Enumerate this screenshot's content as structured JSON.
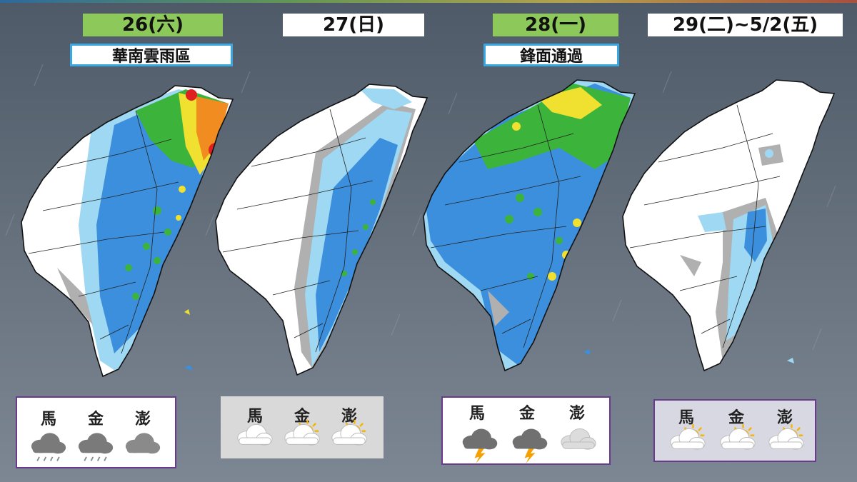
{
  "days": [
    {
      "date": "26(六)",
      "note": "華南雲雨區",
      "date_color": "#8dc95a"
    },
    {
      "date": "27(日)",
      "note": "",
      "date_color": "#ffffff"
    },
    {
      "date": "28(一)",
      "note": "鋒面通過",
      "date_color": "#8dc95a"
    },
    {
      "date": "29(二)~5/2(五)",
      "note": "",
      "date_color": "#ffffff"
    }
  ],
  "islands": [
    "馬",
    "金",
    "澎"
  ],
  "outlook": [
    [
      "cloud-rain-icon",
      "cloud-rain-icon",
      "cloud-dark-icon"
    ],
    [
      "cloud-icon",
      "sun-cloud-icon",
      "sun-cloud-icon"
    ],
    [
      "thunder-icon",
      "thunder-icon",
      "cloud-light-icon"
    ],
    [
      "sun-cloud-icon",
      "sun-cloud-icon",
      "sun-cloud-icon"
    ]
  ],
  "colors": {
    "no_rain": "#ffffff",
    "trace": "#b0b0b0",
    "light": "#9ed8f2",
    "moderate": "#3c8fdc",
    "heavy_green": "#3cb43c",
    "heavy_yellow": "#f0e030",
    "heavy_orange": "#f08c20",
    "extreme_red": "#e02020",
    "extreme_purple": "#a020a0",
    "date_green": "#8dc95a",
    "note_border": "#3aa7e0",
    "box_border": "#6a3a8c"
  }
}
